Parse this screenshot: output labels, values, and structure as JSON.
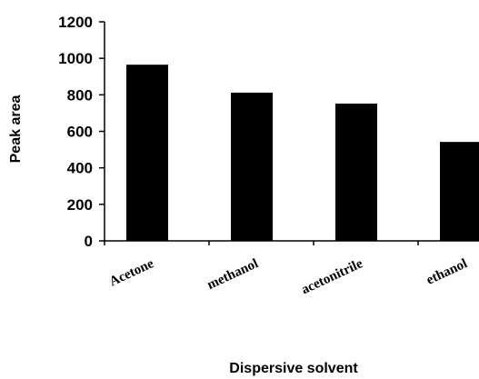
{
  "chart_data": {
    "type": "bar",
    "title": "",
    "xlabel": "Dispersive solvent",
    "ylabel": "Peak area",
    "categories": [
      "Acetone",
      "methanol",
      "acetonitrile",
      "ethanol"
    ],
    "values": [
      965,
      812,
      752,
      542
    ],
    "ylim": [
      0,
      1200
    ],
    "yticks": [
      "0",
      "200",
      "400",
      "600",
      "800",
      "1000",
      "1200"
    ],
    "grid": false,
    "legend": "none",
    "bar_color": "#000000"
  }
}
